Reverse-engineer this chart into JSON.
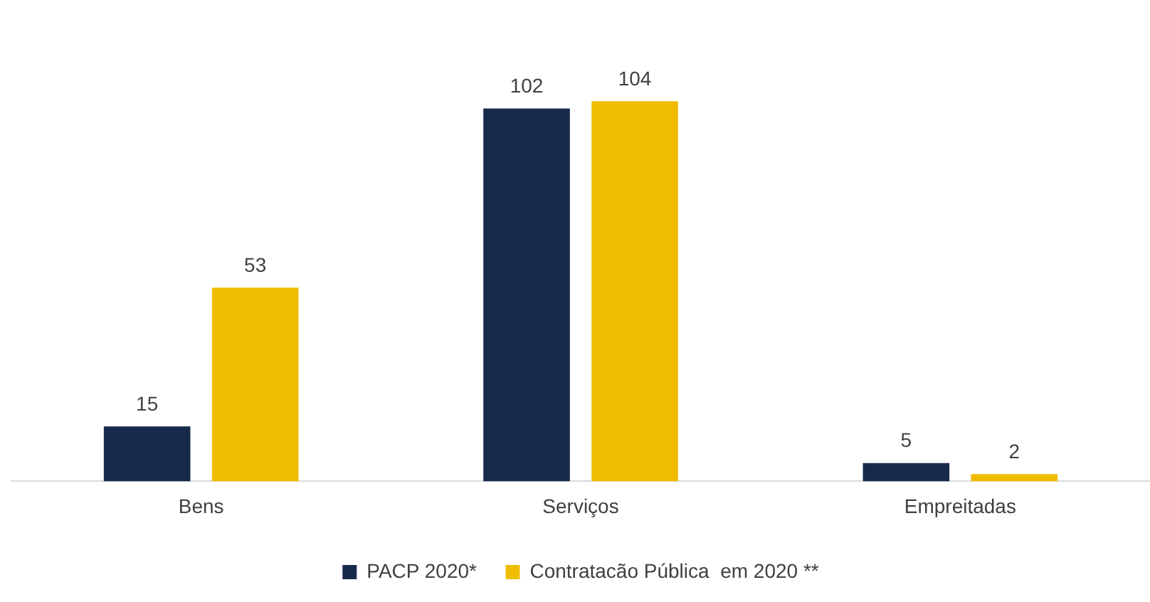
{
  "chart_data": {
    "type": "bar",
    "categories": [
      "Bens",
      "Serviços",
      "Empreitadas"
    ],
    "series": [
      {
        "name": "PACP 2020*",
        "color": "#172a4c",
        "values": [
          15,
          102,
          5
        ]
      },
      {
        "name": "Contratacão Pública  em 2020 **",
        "color": "#f0bc00",
        "values": [
          53,
          104,
          2
        ]
      }
    ],
    "data_labels": true,
    "legend": "bottom",
    "grid": false
  }
}
